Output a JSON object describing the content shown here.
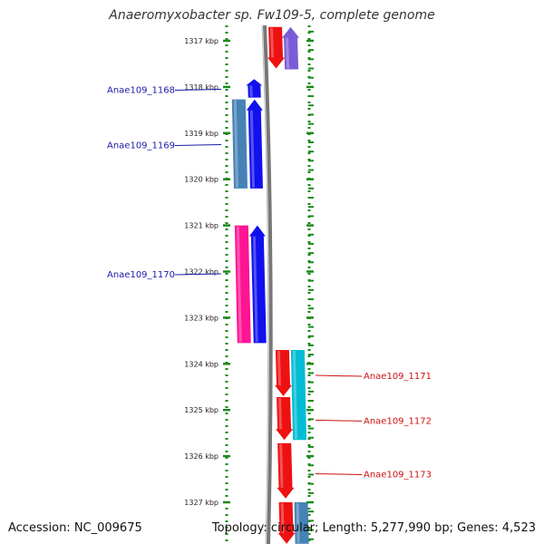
{
  "title": "Anaeromyxobacter sp. Fw109-5, complete genome",
  "accession": "Accession: NC_009675",
  "summary": "Topology: circular; Length: 5,277,990 bp; Genes: 4,523",
  "colors": {
    "label_left": "#1a1aa6",
    "label_right": "#cc1111",
    "tick": "#1a8a1a",
    "backbone": "#777777"
  },
  "ticks": [
    {
      "label": "1317 kbp",
      "kbp": 1317
    },
    {
      "label": "1318 kbp",
      "kbp": 1318
    },
    {
      "label": "1319 kbp",
      "kbp": 1319
    },
    {
      "label": "1320 kbp",
      "kbp": 1320
    },
    {
      "label": "1321 kbp",
      "kbp": 1321
    },
    {
      "label": "1322 kbp",
      "kbp": 1322
    },
    {
      "label": "1323 kbp",
      "kbp": 1323
    },
    {
      "label": "1324 kbp",
      "kbp": 1324
    },
    {
      "label": "1325 kbp",
      "kbp": 1325
    },
    {
      "label": "1326 kbp",
      "kbp": 1326
    },
    {
      "label": "1327 kbp",
      "kbp": 1327
    }
  ],
  "gene_labels": [
    {
      "name": "Anae109_1168",
      "side": "left",
      "kbp": 1318.05
    },
    {
      "name": "Anae109_1169",
      "side": "left",
      "kbp": 1319.25
    },
    {
      "name": "Anae109_1170",
      "side": "left",
      "kbp": 1322.05
    },
    {
      "name": "Anae109_1171",
      "side": "right",
      "kbp": 1324.25
    },
    {
      "name": "Anae109_1172",
      "side": "right",
      "kbp": 1325.22
    },
    {
      "name": "Anae109_1173",
      "side": "right",
      "kbp": 1326.38
    }
  ],
  "features": [
    {
      "name": "purple-top",
      "track": "outer-right",
      "start": 1316.7,
      "end": 1317.62,
      "strand": "+",
      "color": "#7b5cd6"
    },
    {
      "name": "red-top",
      "track": "right",
      "start": 1316.7,
      "end": 1317.6,
      "strand": "-",
      "color": "#ee1111"
    },
    {
      "name": "blue-small",
      "track": "left",
      "start": 1317.83,
      "end": 1318.23,
      "strand": "+",
      "color": "#1111ee"
    },
    {
      "name": "blue-1169",
      "track": "left",
      "start": 1318.27,
      "end": 1320.2,
      "strand": "+",
      "color": "#1111ee"
    },
    {
      "name": "steel-1168",
      "track": "outer-left",
      "start": 1318.27,
      "end": 1320.2,
      "strand": "none",
      "color": "#4682b4"
    },
    {
      "name": "blue-1170",
      "track": "left",
      "start": 1321.0,
      "end": 1323.55,
      "strand": "+",
      "color": "#1111ee"
    },
    {
      "name": "pink-1170",
      "track": "outer-left",
      "start": 1321.0,
      "end": 1323.55,
      "strand": "none",
      "color": "#ff1493"
    },
    {
      "name": "red-1171",
      "track": "right",
      "start": 1323.7,
      "end": 1324.7,
      "strand": "-",
      "color": "#ee1111"
    },
    {
      "name": "red-1172",
      "track": "right",
      "start": 1324.72,
      "end": 1325.65,
      "strand": "-",
      "color": "#ee1111"
    },
    {
      "name": "cyan-1171",
      "track": "outer-right",
      "start": 1323.7,
      "end": 1325.65,
      "strand": "none",
      "color": "#00bcd4"
    },
    {
      "name": "red-1173",
      "track": "right",
      "start": 1325.72,
      "end": 1326.92,
      "strand": "-",
      "color": "#ee1111"
    },
    {
      "name": "red-bottom",
      "track": "right",
      "start": 1327.0,
      "end": 1327.9,
      "strand": "-",
      "color": "#ee1111"
    },
    {
      "name": "steel-bottom",
      "track": "outer-right",
      "start": 1327.0,
      "end": 1327.9,
      "strand": "none",
      "color": "#4682b4"
    }
  ]
}
